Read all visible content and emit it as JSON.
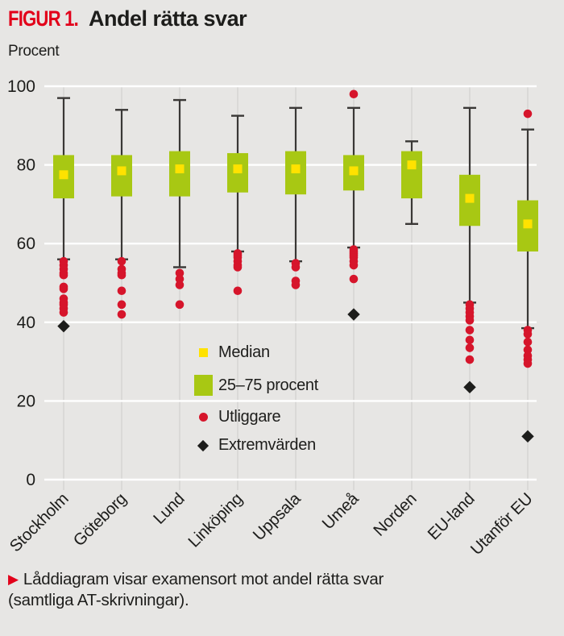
{
  "header": {
    "figure_label": "FIGUR 1.",
    "title": "Andel rätta svar",
    "unit_label": "Procent"
  },
  "caption": {
    "arrow": "▶",
    "line1": "Låddiagram visar examensort mot andel rätta svar",
    "line2": "(samtliga AT-skrivningar)."
  },
  "colors": {
    "background": "#e7e6e4",
    "box_green": "#a8c813",
    "median_yellow": "#ffe200",
    "outlier_red": "#d6152b",
    "extreme_black": "#1d1d1b",
    "title_red": "#e2001a",
    "ink": "#1d1d1b",
    "gridline_white": "#ffffff",
    "category_line_gray": "#d7d6d4",
    "whisker_dark": "#3a3836"
  },
  "chart_data": {
    "type": "boxplot",
    "title": "Andel rätta svar",
    "ylabel": "Procent",
    "xlabel": "",
    "ylim": [
      0,
      100
    ],
    "yticks": [
      0,
      20,
      40,
      60,
      80,
      100
    ],
    "grid": "horizontal white gridlines on gray background, light vertical guide per category",
    "legend_position": "inside plot, lower center-left",
    "legend": [
      {
        "marker": "yellow-square",
        "label": "Median"
      },
      {
        "marker": "green-box",
        "label": "25–75 procent"
      },
      {
        "marker": "red-dot",
        "label": "Utliggare"
      },
      {
        "marker": "black-diamond",
        "label": "Extremvärden"
      }
    ],
    "categories": [
      "Stockholm",
      "Göteborg",
      "Lund",
      "Linköping",
      "Uppsala",
      "Umeå",
      "Norden",
      "EU-land",
      "Utanför EU"
    ],
    "series": [
      {
        "name": "Stockholm",
        "whisker_low": 56,
        "q1": 71.5,
        "median": 77.5,
        "q3": 82.5,
        "whisker_high": 97,
        "outliers": [
          55.5,
          54.5,
          53.5,
          52.5,
          52,
          49,
          48.5,
          46,
          45,
          44.5,
          43.5,
          42.5
        ],
        "extremes": [
          39
        ]
      },
      {
        "name": "Göteborg",
        "whisker_low": 56,
        "q1": 72,
        "median": 78.5,
        "q3": 82.5,
        "whisker_high": 94,
        "outliers": [
          55.5,
          53.5,
          52.5,
          52,
          48,
          44.5,
          42
        ],
        "extremes": []
      },
      {
        "name": "Lund",
        "whisker_low": 54,
        "q1": 72,
        "median": 79,
        "q3": 83.5,
        "whisker_high": 96.5,
        "outliers": [
          52.5,
          51,
          49.5,
          44.5
        ],
        "extremes": []
      },
      {
        "name": "Linköping",
        "whisker_low": 58,
        "q1": 73,
        "median": 79,
        "q3": 83,
        "whisker_high": 92.5,
        "outliers": [
          57.5,
          57,
          56.5,
          55.5,
          54.5,
          54,
          48
        ],
        "extremes": []
      },
      {
        "name": "Uppsala",
        "whisker_low": 55.5,
        "q1": 72.5,
        "median": 79,
        "q3": 83.5,
        "whisker_high": 94.5,
        "outliers": [
          55,
          54,
          50.5,
          49.5
        ],
        "extremes": []
      },
      {
        "name": "Umeå",
        "whisker_low": 59,
        "q1": 73.5,
        "median": 78.5,
        "q3": 82.5,
        "whisker_high": 94.5,
        "outliers": [
          98,
          58.5,
          58,
          57.5,
          57,
          56.5,
          55.5,
          54.5,
          51
        ],
        "extremes": [
          42
        ]
      },
      {
        "name": "Norden",
        "whisker_low": 65,
        "q1": 71.5,
        "median": 80,
        "q3": 83.5,
        "whisker_high": 86,
        "outliers": [],
        "extremes": []
      },
      {
        "name": "EU-land",
        "whisker_low": 45,
        "q1": 64.5,
        "median": 71.5,
        "q3": 77.5,
        "whisker_high": 94.5,
        "outliers": [
          44.5,
          43.5,
          42.5,
          41.5,
          40.5,
          38,
          35.5,
          33.5,
          30.5
        ],
        "extremes": [
          23.5
        ]
      },
      {
        "name": "Utanför EU",
        "whisker_low": 38.5,
        "q1": 58,
        "median": 65,
        "q3": 71,
        "whisker_high": 89,
        "outliers": [
          93,
          38,
          37,
          35,
          33,
          31.5,
          30.5,
          29.5
        ],
        "extremes": [
          11
        ]
      }
    ]
  }
}
